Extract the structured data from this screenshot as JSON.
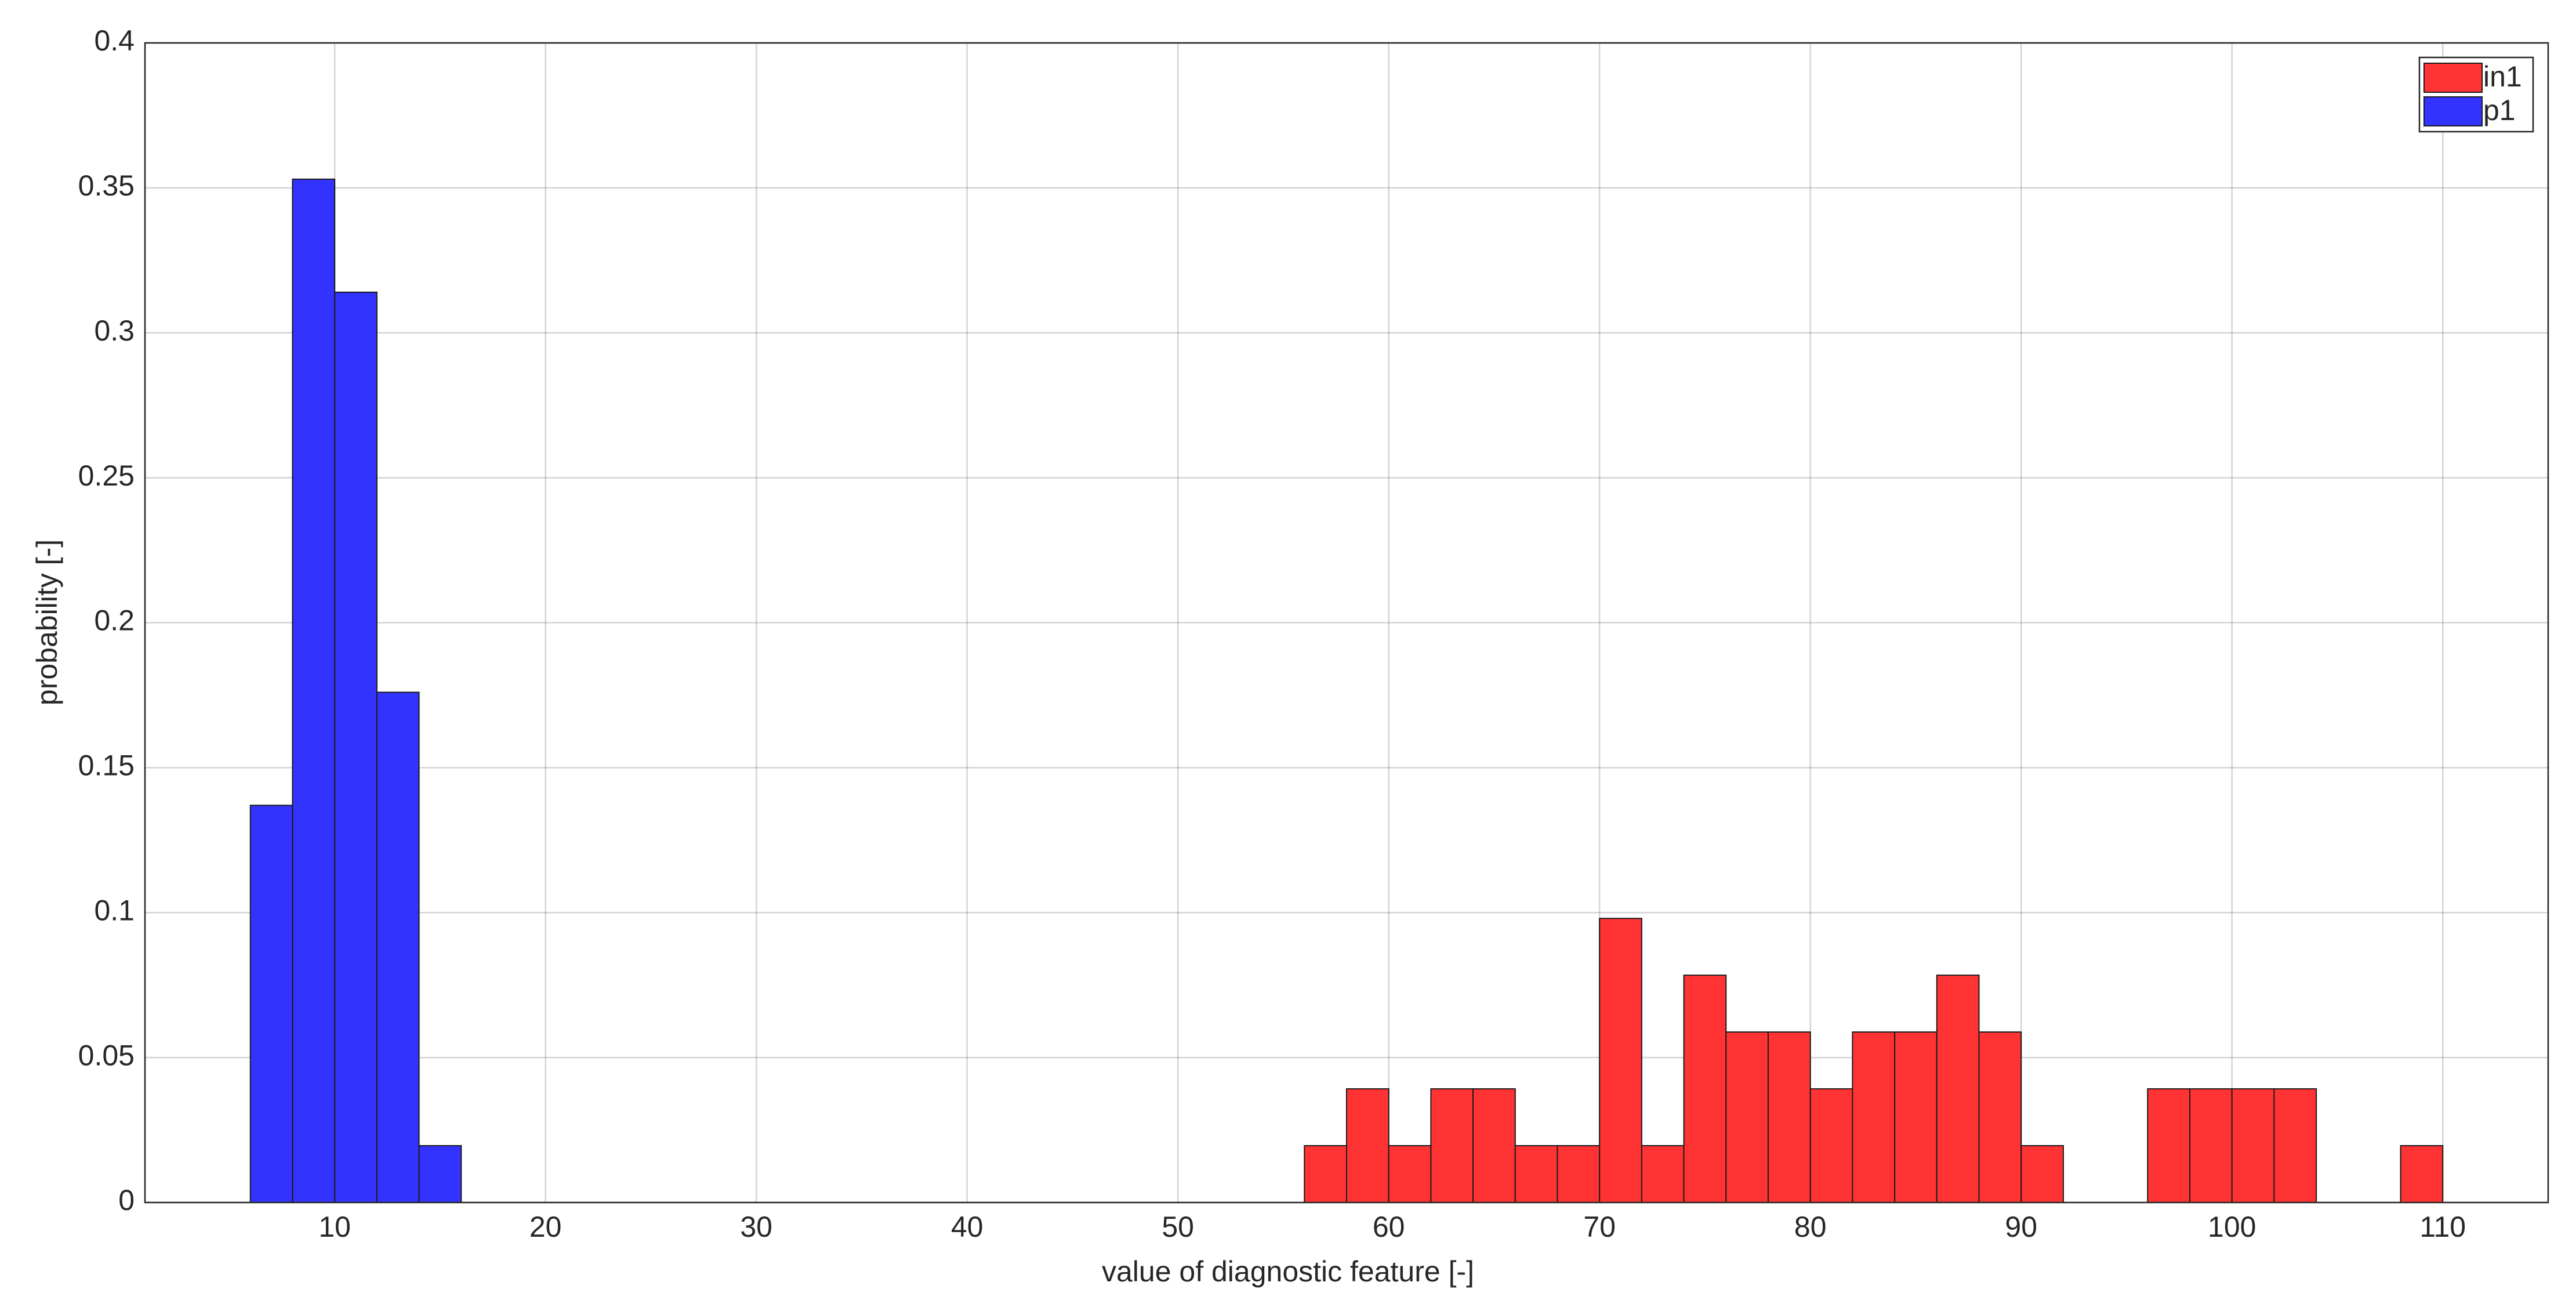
{
  "chart_data": {
    "type": "histogram",
    "xlabel": "value of diagnostic feature [-]",
    "ylabel": "probability [-]",
    "xlim": [
      1,
      115
    ],
    "xticks": [
      10,
      20,
      30,
      40,
      50,
      60,
      70,
      80,
      90,
      100,
      110
    ],
    "ylim": [
      0,
      0.4
    ],
    "yticks": [
      0,
      0.05,
      0.1,
      0.15,
      0.2,
      0.25,
      0.3,
      0.35,
      0.4
    ],
    "grid": true,
    "legend": "upper right",
    "series": [
      {
        "name": "in1",
        "color": "#ff3333",
        "bins": [
          56,
          58,
          60,
          62,
          64,
          66,
          68,
          70,
          72,
          74,
          76,
          78,
          80,
          82,
          84,
          86,
          88,
          90,
          92,
          94,
          96,
          98,
          100,
          102,
          104,
          106,
          108,
          110
        ],
        "values": [
          0.0196,
          0.0392,
          0.0196,
          0.0392,
          0.0392,
          0.0196,
          0.0196,
          0.098,
          0.0196,
          0.0784,
          0.0588,
          0.0588,
          0.0392,
          0.0588,
          0.0588,
          0.0784,
          0.0588,
          0.0196,
          0,
          0,
          0.0392,
          0.0392,
          0.0392,
          0.0392,
          0,
          0,
          0.0196
        ]
      },
      {
        "name": "p1",
        "color": "#3333ff",
        "bins": [
          6,
          8,
          10,
          12,
          14,
          16
        ],
        "values": [
          0.137,
          0.353,
          0.314,
          0.176,
          0.0196
        ]
      }
    ]
  }
}
